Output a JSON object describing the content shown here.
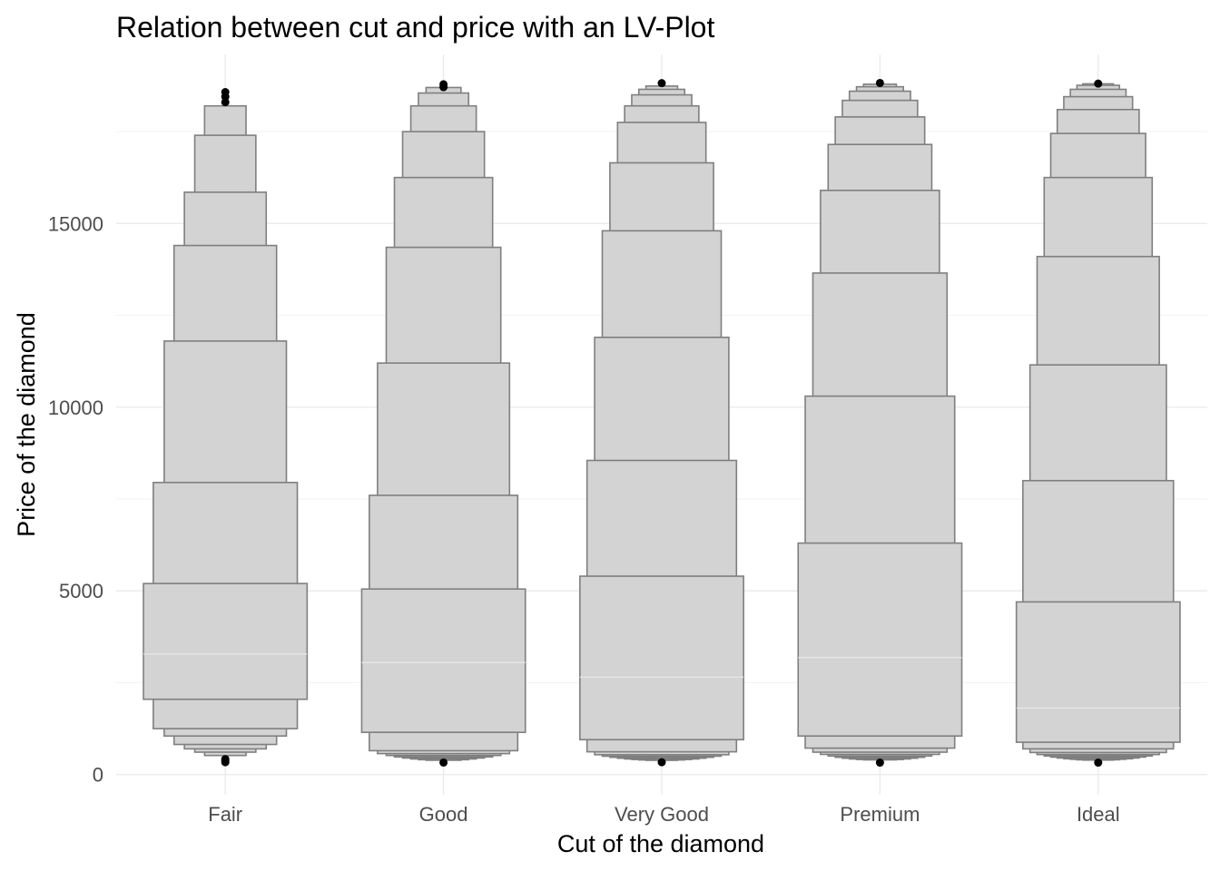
{
  "chart_data": {
    "type": "lv-plot",
    "title": "Relation between cut and price with an LV-Plot",
    "xlabel": "Cut of the diamond",
    "ylabel": "Price of the diamond",
    "ylim": [
      -550,
      19600
    ],
    "yticks": [
      0,
      5000,
      10000,
      15000
    ],
    "ytick_labels": [
      "0",
      "5000",
      "10000",
      "15000"
    ],
    "grid": true,
    "fill_color": "#d3d3d3",
    "outline_color": "#7f7f7f",
    "outlier_color": "#000000",
    "categories": [
      "Fair",
      "Good",
      "Very Good",
      "Premium",
      "Ideal"
    ],
    "series": [
      {
        "category": "Fair",
        "median": 3280,
        "boxes": [
          {
            "lower": 2050,
            "upper": 5200,
            "width": 0.75
          },
          {
            "lower": 1250,
            "upper": 7950,
            "width": 0.66
          },
          {
            "lower": 1050,
            "upper": 11800,
            "width": 0.56
          },
          {
            "lower": 820,
            "upper": 14400,
            "width": 0.47
          },
          {
            "lower": 700,
            "upper": 15850,
            "width": 0.375
          },
          {
            "lower": 610,
            "upper": 17400,
            "width": 0.28
          },
          {
            "lower": 520,
            "upper": 18200,
            "width": 0.19
          }
        ],
        "outliers": [
          337,
          380,
          420,
          18300,
          18450,
          18574
        ]
      },
      {
        "category": "Good",
        "median": 3050,
        "boxes": [
          {
            "lower": 1150,
            "upper": 5050,
            "width": 0.75
          },
          {
            "lower": 650,
            "upper": 7600,
            "width": 0.68
          },
          {
            "lower": 570,
            "upper": 11200,
            "width": 0.605
          },
          {
            "lower": 520,
            "upper": 14350,
            "width": 0.525
          },
          {
            "lower": 480,
            "upper": 16250,
            "width": 0.45
          },
          {
            "lower": 450,
            "upper": 17500,
            "width": 0.375
          },
          {
            "lower": 425,
            "upper": 18200,
            "width": 0.3
          },
          {
            "lower": 405,
            "upper": 18550,
            "width": 0.23
          },
          {
            "lower": 390,
            "upper": 18700,
            "width": 0.16
          }
        ],
        "outliers": [
          327,
          18710,
          18788
        ]
      },
      {
        "category": "Very Good",
        "median": 2650,
        "boxes": [
          {
            "lower": 950,
            "upper": 5400,
            "width": 0.75
          },
          {
            "lower": 620,
            "upper": 8550,
            "width": 0.685
          },
          {
            "lower": 540,
            "upper": 11900,
            "width": 0.615
          },
          {
            "lower": 500,
            "upper": 14800,
            "width": 0.545
          },
          {
            "lower": 470,
            "upper": 16650,
            "width": 0.475
          },
          {
            "lower": 445,
            "upper": 17750,
            "width": 0.405
          },
          {
            "lower": 425,
            "upper": 18200,
            "width": 0.34
          },
          {
            "lower": 410,
            "upper": 18500,
            "width": 0.275
          },
          {
            "lower": 398,
            "upper": 18650,
            "width": 0.21
          },
          {
            "lower": 388,
            "upper": 18740,
            "width": 0.145
          }
        ],
        "outliers": [
          336,
          18818
        ]
      },
      {
        "category": "Premium",
        "median": 3185,
        "boxes": [
          {
            "lower": 1050,
            "upper": 6300,
            "width": 0.75
          },
          {
            "lower": 720,
            "upper": 10300,
            "width": 0.685
          },
          {
            "lower": 610,
            "upper": 13650,
            "width": 0.615
          },
          {
            "lower": 550,
            "upper": 15900,
            "width": 0.545
          },
          {
            "lower": 505,
            "upper": 17150,
            "width": 0.475
          },
          {
            "lower": 470,
            "upper": 17900,
            "width": 0.41
          },
          {
            "lower": 445,
            "upper": 18350,
            "width": 0.345
          },
          {
            "lower": 425,
            "upper": 18600,
            "width": 0.28
          },
          {
            "lower": 410,
            "upper": 18720,
            "width": 0.215
          },
          {
            "lower": 400,
            "upper": 18790,
            "width": 0.15
          }
        ],
        "outliers": [
          326,
          18823
        ]
      },
      {
        "category": "Ideal",
        "median": 1810,
        "boxes": [
          {
            "lower": 880,
            "upper": 4700,
            "width": 0.75
          },
          {
            "lower": 700,
            "upper": 8000,
            "width": 0.69
          },
          {
            "lower": 600,
            "upper": 11150,
            "width": 0.625
          },
          {
            "lower": 545,
            "upper": 14100,
            "width": 0.56
          },
          {
            "lower": 505,
            "upper": 16250,
            "width": 0.495
          },
          {
            "lower": 475,
            "upper": 17450,
            "width": 0.435
          },
          {
            "lower": 450,
            "upper": 18100,
            "width": 0.375
          },
          {
            "lower": 430,
            "upper": 18450,
            "width": 0.315
          },
          {
            "lower": 415,
            "upper": 18650,
            "width": 0.255
          },
          {
            "lower": 402,
            "upper": 18760,
            "width": 0.195
          },
          {
            "lower": 394,
            "upper": 18800,
            "width": 0.14
          }
        ],
        "outliers": [
          326,
          18806
        ]
      }
    ]
  }
}
